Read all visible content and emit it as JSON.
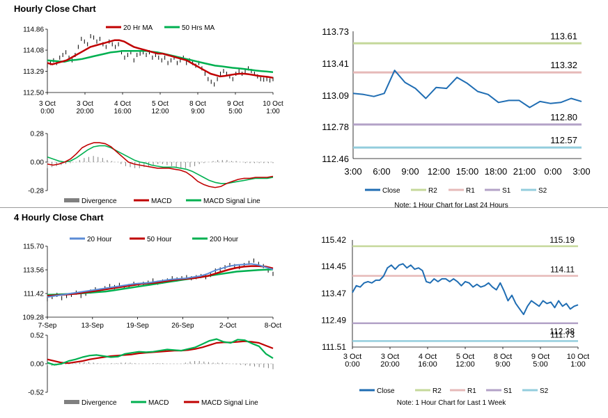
{
  "sections": {
    "hourly_title": "Hourly Close Chart",
    "four_hourly_title": "4 Hourly Close Chart"
  },
  "colors": {
    "close": "#1f6db3",
    "r2": "#c5d89a",
    "r1": "#e6b9b8",
    "s1": "#b3a2c7",
    "s2": "#93cddd",
    "ma_red": "#c00000",
    "ma_green": "#00b050",
    "ma_blue": "#5b8bd6",
    "price": "#000000",
    "divergence": "#808080"
  },
  "chart_data": [
    {
      "id": "hourly-price",
      "type": "line",
      "x_ticks": [
        "3 Oct\n0:00",
        "3 Oct\n20:00",
        "4 Oct\n16:00",
        "5 Oct\n12:00",
        "8 Oct\n9:00",
        "9 Oct\n5:00",
        "10 Oct\n1:00"
      ],
      "y_ticks": [
        "114.86",
        "114.08",
        "113.29",
        "112.50"
      ],
      "ylim": [
        112.5,
        114.86
      ],
      "legend": [
        "20 Hr MA",
        "50 Hrs MA"
      ],
      "series": [
        {
          "name": "Price",
          "style": "candles",
          "values": [
            113.5,
            113.6,
            113.7,
            113.6,
            113.8,
            113.9,
            114.0,
            113.8,
            113.7,
            113.9,
            114.2,
            114.5,
            114.4,
            114.3,
            114.6,
            114.55,
            114.4,
            114.5,
            114.3,
            114.2,
            114.4,
            114.3,
            114.2,
            114.3,
            114.0,
            113.8,
            113.9,
            114.0,
            113.7,
            113.9,
            113.95,
            114.0,
            113.9,
            114.0,
            113.8,
            113.9,
            113.8,
            113.7,
            113.8,
            113.6,
            113.7,
            113.8,
            113.6,
            113.7,
            113.8,
            113.6,
            113.7,
            113.6,
            113.5,
            113.6,
            113.4,
            113.2,
            113.0,
            112.9,
            112.8,
            113.0,
            113.2,
            113.3,
            113.2,
            113.1,
            113.0,
            113.2,
            113.3,
            113.2,
            113.3,
            113.4,
            113.3,
            113.2,
            113.1,
            113.0,
            112.98,
            113.0,
            112.95,
            113.0
          ]
        },
        {
          "name": "20 Hr MA",
          "values": [
            113.6,
            113.55,
            113.6,
            113.65,
            113.7,
            113.8,
            113.9,
            114.0,
            114.1,
            114.2,
            114.25,
            114.3,
            114.35,
            114.4,
            114.45,
            114.45,
            114.4,
            114.3,
            114.2,
            114.15,
            114.1,
            114.05,
            114.0,
            113.95,
            113.95,
            113.9,
            113.85,
            113.8,
            113.75,
            113.7,
            113.6,
            113.5,
            113.4,
            113.3,
            113.2,
            113.15,
            113.1,
            113.12,
            113.15,
            113.18,
            113.2,
            113.2,
            113.18,
            113.15,
            113.12,
            113.1,
            113.08,
            113.05
          ]
        },
        {
          "name": "50 Hrs MA",
          "values": [
            113.7,
            113.68,
            113.66,
            113.65,
            113.7,
            113.72,
            113.75,
            113.8,
            113.85,
            113.9,
            113.95,
            114.0,
            114.02,
            114.05,
            114.05,
            114.05,
            114.05,
            114.05,
            114.02,
            114.0,
            113.95,
            113.9,
            113.85,
            113.8,
            113.75,
            113.7,
            113.65,
            113.6,
            113.55,
            113.5,
            113.48,
            113.45,
            113.42,
            113.4,
            113.38,
            113.35,
            113.32,
            113.3,
            113.28,
            113.26
          ]
        }
      ]
    },
    {
      "id": "hourly-macd",
      "type": "line",
      "y_ticks": [
        "0.28",
        "0.00",
        "-0.28"
      ],
      "ylim": [
        -0.28,
        0.28
      ],
      "legend": [
        "Divergence",
        "MACD",
        "MACD Signal Line"
      ],
      "series": [
        {
          "name": "Divergence",
          "style": "bars",
          "values": [
            -0.06,
            -0.05,
            -0.04,
            -0.03,
            -0.02,
            -0.01,
            0.0,
            0.02,
            0.04,
            0.05,
            0.06,
            0.05,
            0.04,
            0.02,
            0.01,
            0.0,
            -0.02,
            -0.04,
            -0.05,
            -0.06,
            -0.06,
            -0.05,
            -0.04,
            -0.03,
            -0.02,
            -0.02,
            -0.03,
            -0.04,
            -0.05,
            -0.06,
            -0.06,
            -0.05,
            -0.04,
            -0.02,
            -0.01,
            0.0,
            0.01,
            0.02,
            0.02,
            0.02,
            0.01,
            0.01,
            0.0,
            -0.01,
            -0.01,
            -0.01,
            -0.01,
            -0.01,
            -0.01,
            -0.01
          ]
        },
        {
          "name": "MACD",
          "values": [
            -0.02,
            -0.03,
            -0.02,
            0.0,
            0.03,
            0.08,
            0.14,
            0.17,
            0.19,
            0.19,
            0.18,
            0.15,
            0.1,
            0.05,
            0.0,
            -0.02,
            -0.03,
            -0.04,
            -0.05,
            -0.06,
            -0.06,
            -0.06,
            -0.07,
            -0.08,
            -0.1,
            -0.14,
            -0.19,
            -0.22,
            -0.24,
            -0.25,
            -0.24,
            -0.21,
            -0.19,
            -0.17,
            -0.16,
            -0.16,
            -0.15,
            -0.15,
            -0.15,
            -0.14
          ]
        },
        {
          "name": "MACD Signal Line",
          "values": [
            0.05,
            0.03,
            0.01,
            0.0,
            0.01,
            0.04,
            0.08,
            0.12,
            0.15,
            0.16,
            0.16,
            0.14,
            0.11,
            0.08,
            0.05,
            0.02,
            0.0,
            -0.01,
            -0.03,
            -0.04,
            -0.05,
            -0.05,
            -0.05,
            -0.06,
            -0.07,
            -0.09,
            -0.12,
            -0.15,
            -0.18,
            -0.2,
            -0.21,
            -0.21,
            -0.2,
            -0.19,
            -0.18,
            -0.17,
            -0.16,
            -0.16,
            -0.16,
            -0.15
          ]
        }
      ]
    },
    {
      "id": "hourly-24h",
      "type": "line",
      "x_ticks": [
        "3:00",
        "6:00",
        "9:00",
        "12:00",
        "15:00",
        "18:00",
        "21:00",
        "0:00",
        "3:00"
      ],
      "y_ticks": [
        "113.73",
        "113.41",
        "113.09",
        "112.78",
        "112.46"
      ],
      "ylim": [
        112.46,
        113.73
      ],
      "levels": [
        {
          "name": "R2",
          "value": 113.61,
          "label": "113.61"
        },
        {
          "name": "R1",
          "value": 113.32,
          "label": "113.32"
        },
        {
          "name": "S1",
          "value": 112.8,
          "label": "112.80"
        },
        {
          "name": "S2",
          "value": 112.57,
          "label": "112.57"
        }
      ],
      "legend": [
        "Close",
        "R2",
        "R1",
        "S1",
        "S2"
      ],
      "note": "Note: 1 Hour Chart for Last 24 Hours",
      "series": [
        {
          "name": "Close",
          "values": [
            113.11,
            113.1,
            113.08,
            113.11,
            113.34,
            113.22,
            113.16,
            113.06,
            113.17,
            113.16,
            113.27,
            113.21,
            113.13,
            113.1,
            113.02,
            113.04,
            113.04,
            112.97,
            113.03,
            113.01,
            113.02,
            113.06,
            113.03
          ]
        }
      ]
    },
    {
      "id": "four-hourly-price",
      "type": "line",
      "x_ticks": [
        "7-Sep",
        "13-Sep",
        "19-Sep",
        "26-Sep",
        "2-Oct",
        "8-Oct"
      ],
      "y_ticks": [
        "115.70",
        "113.56",
        "111.42",
        "109.28"
      ],
      "ylim": [
        109.28,
        115.7
      ],
      "legend": [
        "20 Hour",
        "50 Hour",
        "200 Hour"
      ],
      "series": [
        {
          "name": "Price",
          "style": "candles",
          "values": [
            110.9,
            111.1,
            111.3,
            111.0,
            111.2,
            111.3,
            111.5,
            111.2,
            111.4,
            111.6,
            111.8,
            111.7,
            111.9,
            112.1,
            112.0,
            112.2,
            112.0,
            112.1,
            112.3,
            112.2,
            112.3,
            112.4,
            112.6,
            112.4,
            112.5,
            112.6,
            112.8,
            112.7,
            112.8,
            112.9,
            112.8,
            112.9,
            113.0,
            112.9,
            113.1,
            113.5,
            113.6,
            113.8,
            114.0,
            113.9,
            113.8,
            114.0,
            114.2,
            114.4,
            114.1,
            113.9,
            113.5,
            113.2
          ]
        },
        {
          "name": "20 Hour",
          "values": [
            111.1,
            111.2,
            111.3,
            111.4,
            111.5,
            111.6,
            111.7,
            111.8,
            111.9,
            112.0,
            112.1,
            112.2,
            112.3,
            112.35,
            112.4,
            112.5,
            112.6,
            112.7,
            112.75,
            112.8,
            112.9,
            113.0,
            113.2,
            113.5,
            113.7,
            113.9,
            114.0,
            114.05,
            114.1,
            114.0,
            113.8,
            113.6
          ]
        },
        {
          "name": "50 Hour",
          "values": [
            111.2,
            111.25,
            111.3,
            111.35,
            111.4,
            111.5,
            111.6,
            111.7,
            111.8,
            111.9,
            112.0,
            112.1,
            112.2,
            112.3,
            112.35,
            112.4,
            112.5,
            112.6,
            112.7,
            112.75,
            112.8,
            112.9,
            113.0,
            113.2,
            113.4,
            113.6,
            113.75,
            113.85,
            113.9,
            113.9,
            113.85,
            113.7
          ]
        },
        {
          "name": "200 Hour",
          "values": [
            111.3,
            111.32,
            111.35,
            111.38,
            111.4,
            111.45,
            111.5,
            111.55,
            111.6,
            111.7,
            111.8,
            111.9,
            112.0,
            112.1,
            112.2,
            112.3,
            112.4,
            112.5,
            112.6,
            112.7,
            112.8,
            112.9,
            113.0,
            113.1,
            113.2,
            113.3,
            113.4,
            113.45,
            113.5,
            113.55,
            113.58,
            113.6
          ]
        }
      ]
    },
    {
      "id": "four-hourly-macd",
      "type": "line",
      "y_ticks": [
        "0.52",
        "0.00",
        "-0.52"
      ],
      "ylim": [
        -0.52,
        0.52
      ],
      "legend": [
        "Divergence",
        "MACD",
        "MACD Signal Line"
      ],
      "series": [
        {
          "name": "Divergence",
          "style": "bars",
          "values": [
            -0.03,
            -0.04,
            -0.03,
            -0.02,
            -0.01,
            0.0,
            0.01,
            0.02,
            0.03,
            0.03,
            0.02,
            0.01,
            0.0,
            0.0,
            0.01,
            0.01,
            0.02,
            0.02,
            0.02,
            0.01,
            0.0,
            0.0,
            0.0,
            0.01,
            0.01,
            0.01,
            0.0,
            0.0,
            0.0,
            0.0,
            0.02,
            0.04,
            0.05,
            0.05,
            0.04,
            0.03,
            0.02,
            0.02,
            0.02,
            0.01,
            0.0,
            -0.01,
            -0.02,
            -0.03,
            -0.04,
            -0.05,
            -0.06,
            -0.07,
            -0.08,
            -0.1
          ]
        },
        {
          "name": "MACD",
          "values": [
            0.02,
            -0.02,
            0.0,
            0.05,
            0.08,
            0.12,
            0.15,
            0.16,
            0.14,
            0.12,
            0.13,
            0.18,
            0.2,
            0.22,
            0.21,
            0.22,
            0.24,
            0.26,
            0.25,
            0.24,
            0.27,
            0.3,
            0.36,
            0.42,
            0.45,
            0.4,
            0.38,
            0.44,
            0.43,
            0.37,
            0.32,
            0.18,
            0.1
          ]
        },
        {
          "name": "MACD Signal Line",
          "values": [
            0.08,
            0.05,
            0.02,
            0.01,
            0.03,
            0.05,
            0.08,
            0.1,
            0.12,
            0.14,
            0.15,
            0.16,
            0.17,
            0.19,
            0.2,
            0.21,
            0.22,
            0.23,
            0.24,
            0.24,
            0.25,
            0.27,
            0.3,
            0.34,
            0.38,
            0.39,
            0.39,
            0.4,
            0.41,
            0.4,
            0.38,
            0.33,
            0.28
          ]
        }
      ]
    },
    {
      "id": "four-hourly-week",
      "type": "line",
      "x_ticks": [
        "3 Oct\n0:00",
        "3 Oct\n20:00",
        "4 Oct\n16:00",
        "5 Oct\n12:00",
        "8 Oct\n9:00",
        "9 Oct\n5:00",
        "10 Oct\n1:00"
      ],
      "y_ticks": [
        "115.42",
        "114.45",
        "113.47",
        "112.49",
        "111.51"
      ],
      "ylim": [
        111.51,
        115.42
      ],
      "levels": [
        {
          "name": "R2",
          "value": 115.19,
          "label": "115.19"
        },
        {
          "name": "R1",
          "value": 114.11,
          "label": "114.11"
        },
        {
          "name": "S1",
          "value": 112.38,
          "label": "112.38"
        },
        {
          "name": "S2",
          "value": 111.73,
          "label": "111.73"
        }
      ],
      "legend": [
        "Close",
        "R2",
        "R1",
        "S1",
        "S2"
      ],
      "note": "Note: 1 Hour Chart for Last 1 Week",
      "series": [
        {
          "name": "Close",
          "values": [
            113.5,
            113.75,
            113.7,
            113.85,
            113.9,
            113.85,
            113.95,
            113.95,
            114.1,
            114.4,
            114.5,
            114.35,
            114.5,
            114.55,
            114.4,
            114.5,
            114.35,
            114.4,
            114.3,
            113.9,
            113.85,
            114.0,
            113.9,
            114.0,
            114.0,
            113.9,
            114.0,
            113.9,
            113.75,
            113.9,
            113.85,
            113.7,
            113.8,
            113.7,
            113.75,
            113.85,
            113.7,
            113.6,
            113.85,
            113.55,
            113.2,
            113.4,
            113.1,
            112.9,
            112.7,
            113.0,
            113.2,
            113.1,
            113.0,
            113.2,
            113.1,
            113.15,
            112.95,
            113.2,
            113.0,
            113.1,
            112.9,
            113.0,
            113.05
          ]
        }
      ]
    }
  ]
}
